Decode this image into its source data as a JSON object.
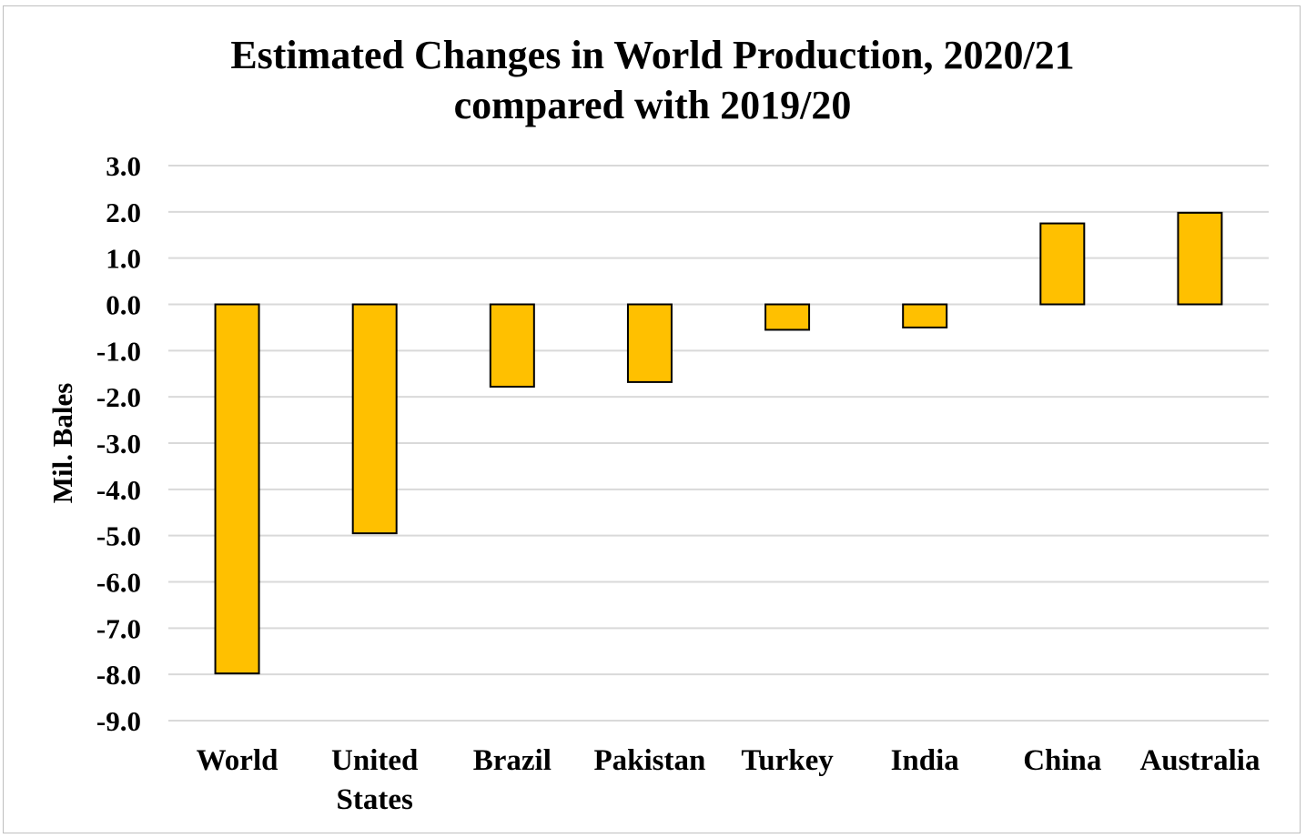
{
  "chart_data": {
    "type": "bar",
    "title": [
      "Estimated Changes in World Production, 2020/21",
      "compared with 2019/20"
    ],
    "ylabel": "Mil. Bales",
    "xlabel": "",
    "categories": [
      [
        "World"
      ],
      [
        "United",
        "States"
      ],
      [
        "Brazil"
      ],
      [
        "Pakistan"
      ],
      [
        "Turkey"
      ],
      [
        "India"
      ],
      [
        "China"
      ],
      [
        "Australia"
      ]
    ],
    "values": [
      -7.98,
      -4.95,
      -1.78,
      -1.68,
      -0.55,
      -0.5,
      1.75,
      1.98
    ],
    "ylim": [
      -9.0,
      3.0
    ],
    "yticks": [
      "3.0",
      "2.0",
      "1.0",
      "0.0",
      "-1.0",
      "-2.0",
      "-3.0",
      "-4.0",
      "-5.0",
      "-6.0",
      "-7.0",
      "-8.0",
      "-9.0"
    ],
    "ytick_values": [
      3,
      2,
      1,
      0,
      -1,
      -2,
      -3,
      -4,
      -5,
      -6,
      -7,
      -8,
      -9
    ],
    "grid": true,
    "legend": "none",
    "colors": {
      "bar_fill": "#FFC000",
      "bar_stroke": "#000000",
      "grid": "#d9d9d9",
      "border": "#bfbfbf"
    }
  }
}
